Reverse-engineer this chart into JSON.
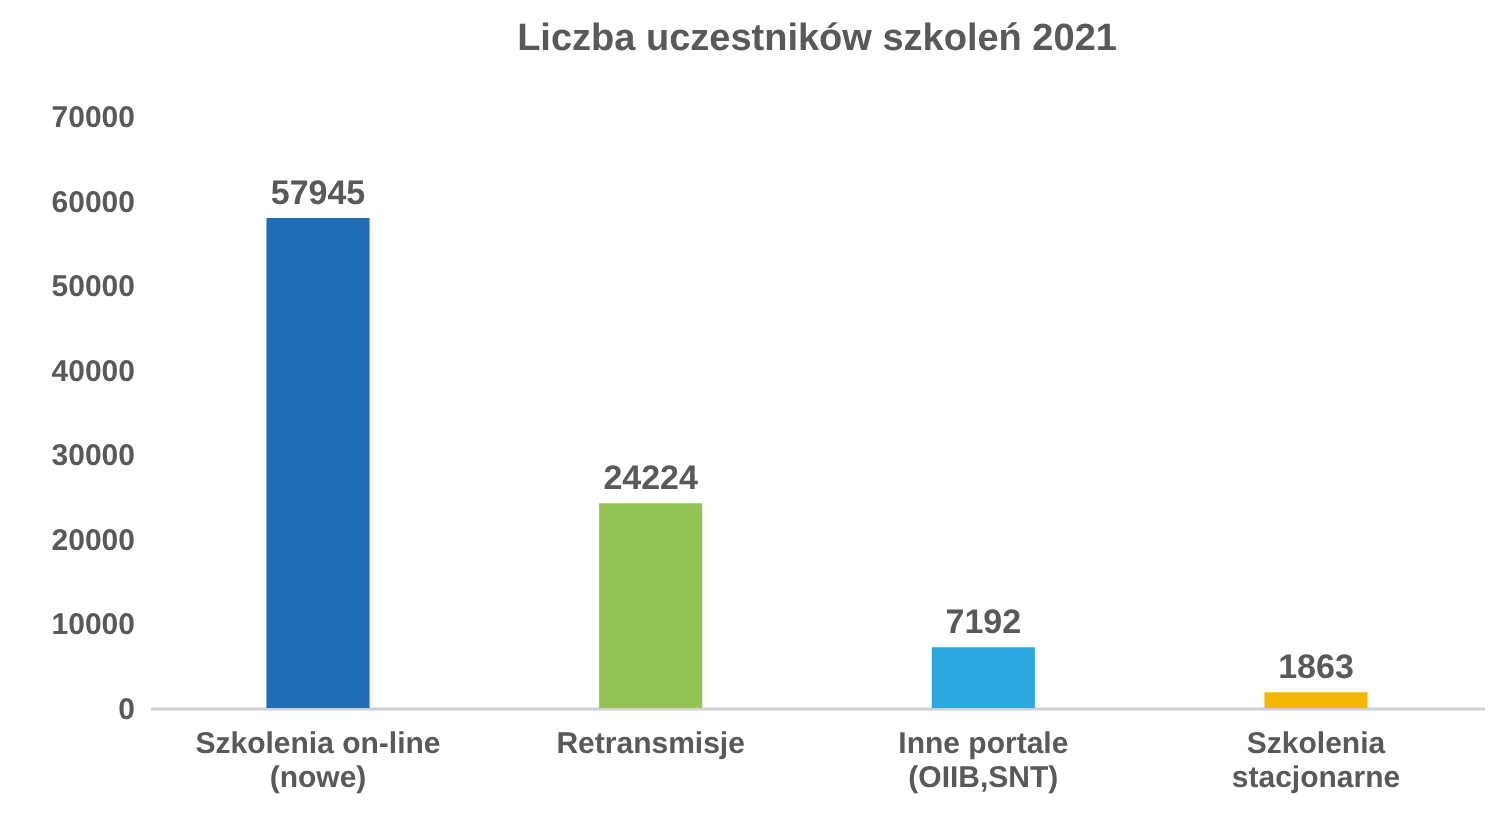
{
  "chart_data": {
    "type": "bar",
    "title": "Liczba uczestników szkoleń 2021",
    "categories": [
      "Szkolenia on-line\n(nowe)",
      "Retransmisje",
      "Inne portale\n(OIIB,SNT)",
      "Szkolenia\nstacjonarne"
    ],
    "values": [
      57945,
      24224,
      7192,
      1863
    ],
    "colors": [
      "#1f6db5",
      "#92c353",
      "#2aa7df",
      "#f5b800"
    ],
    "ylim": [
      0,
      70000
    ],
    "yticks": [
      0,
      10000,
      20000,
      30000,
      40000,
      50000,
      60000,
      70000
    ],
    "data_labels": true,
    "grid": false,
    "legend": false
  }
}
